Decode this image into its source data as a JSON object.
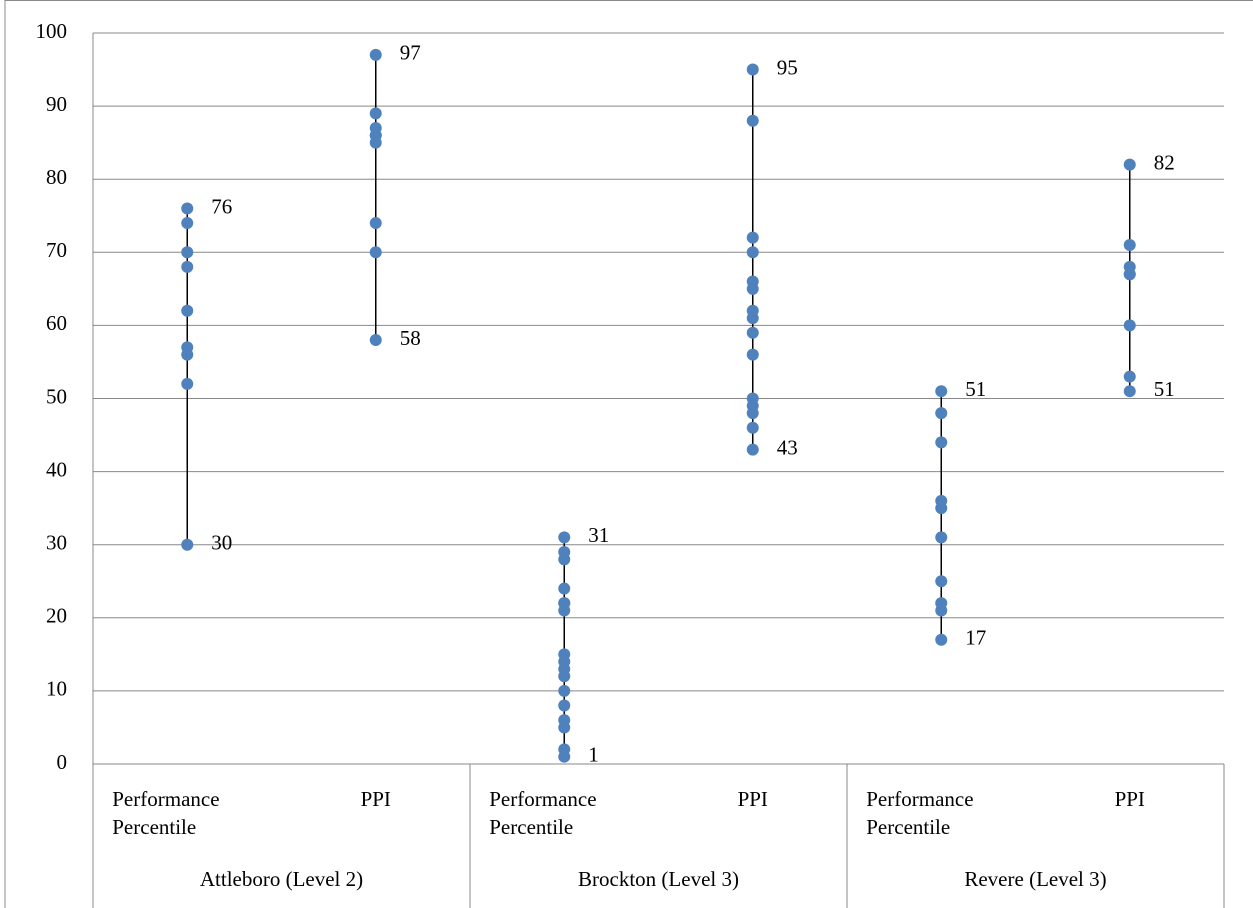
{
  "chart_data": {
    "type": "dot",
    "groups": [
      "Attleboro (Level 2)",
      "Brockton (Level 3)",
      "Revere (Level 3)"
    ],
    "categories": [
      "Performance Percentile",
      "PPI",
      "Performance Percentile",
      "PPI",
      "Performance Percentile",
      "PPI"
    ],
    "values": [
      [
        76,
        74,
        70,
        68,
        62,
        57,
        56,
        52,
        30
      ],
      [
        97,
        89,
        87,
        86,
        86,
        85,
        74,
        70,
        58
      ],
      [
        31,
        29,
        28,
        24,
        22,
        22,
        21,
        15,
        14,
        13,
        12,
        10,
        8,
        6,
        5,
        2,
        1
      ],
      [
        95,
        88,
        72,
        70,
        66,
        65,
        62,
        61,
        59,
        56,
        50,
        49,
        48,
        46,
        43
      ],
      [
        51,
        48,
        44,
        36,
        35,
        31,
        25,
        22,
        21,
        17
      ],
      [
        82,
        71,
        68,
        67,
        67,
        60,
        53,
        51
      ]
    ],
    "color": "#4f81bd",
    "ylim": [
      0,
      100
    ],
    "yticks": [
      0,
      10,
      20,
      30,
      40,
      50,
      60,
      70,
      80,
      90,
      100
    ],
    "grid": true
  }
}
